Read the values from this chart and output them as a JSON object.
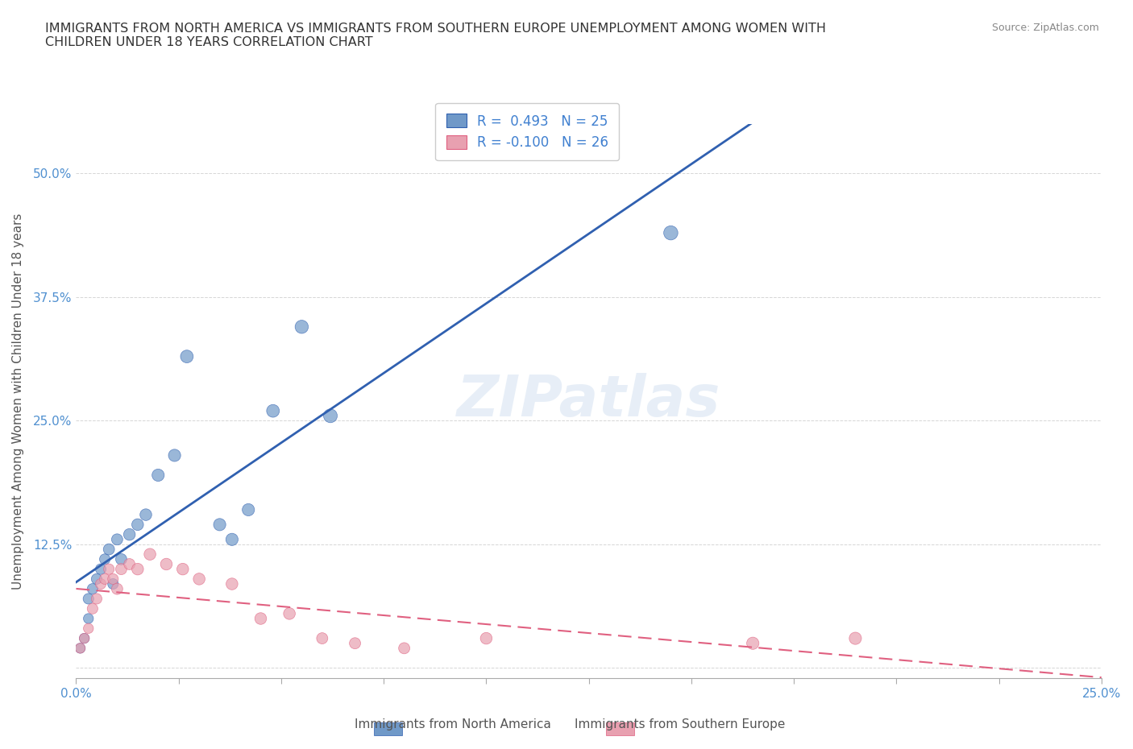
{
  "title": "IMMIGRANTS FROM NORTH AMERICA VS IMMIGRANTS FROM SOUTHERN EUROPE UNEMPLOYMENT AMONG WOMEN WITH\nCHILDREN UNDER 18 YEARS CORRELATION CHART",
  "source": "Source: ZipAtlas.com",
  "xlabel_bottom": "Immigrants from North America",
  "xlabel_bottom2": "Immigrants from Southern Europe",
  "ylabel": "Unemployment Among Women with Children Under 18 years",
  "xlim": [
    0,
    0.25
  ],
  "ylim": [
    -0.01,
    0.55
  ],
  "yticks": [
    0,
    0.125,
    0.25,
    0.375,
    0.5
  ],
  "ytick_labels": [
    "",
    "12.5%",
    "25.0%",
    "37.5%",
    "50.0%"
  ],
  "xticks": [
    0,
    0.025,
    0.05,
    0.075,
    0.1,
    0.125,
    0.15,
    0.175,
    0.2,
    0.225,
    0.25
  ],
  "xtick_labels": [
    "0.0%",
    "",
    "",
    "",
    "",
    "",
    "",
    "",
    "",
    "",
    "25.0%"
  ],
  "blue_R": 0.493,
  "blue_N": 25,
  "pink_R": -0.1,
  "pink_N": 26,
  "blue_color": "#7099c8",
  "pink_color": "#e8a0b0",
  "blue_line_color": "#3060b0",
  "pink_line_color": "#e06080",
  "watermark": "ZIPatlas",
  "blue_points_x": [
    0.001,
    0.002,
    0.003,
    0.003,
    0.004,
    0.005,
    0.006,
    0.007,
    0.008,
    0.009,
    0.01,
    0.011,
    0.013,
    0.015,
    0.017,
    0.02,
    0.024,
    0.027,
    0.035,
    0.038,
    0.042,
    0.048,
    0.055,
    0.062,
    0.145
  ],
  "blue_points_y": [
    0.02,
    0.03,
    0.05,
    0.07,
    0.08,
    0.09,
    0.1,
    0.11,
    0.12,
    0.085,
    0.13,
    0.11,
    0.135,
    0.145,
    0.155,
    0.195,
    0.215,
    0.315,
    0.145,
    0.13,
    0.16,
    0.26,
    0.345,
    0.255,
    0.44
  ],
  "pink_points_x": [
    0.001,
    0.002,
    0.003,
    0.004,
    0.005,
    0.006,
    0.007,
    0.008,
    0.009,
    0.01,
    0.011,
    0.013,
    0.015,
    0.018,
    0.022,
    0.026,
    0.03,
    0.038,
    0.045,
    0.052,
    0.06,
    0.068,
    0.08,
    0.1,
    0.165,
    0.19
  ],
  "pink_points_y": [
    0.02,
    0.03,
    0.04,
    0.06,
    0.07,
    0.085,
    0.09,
    0.1,
    0.09,
    0.08,
    0.1,
    0.105,
    0.1,
    0.115,
    0.105,
    0.1,
    0.09,
    0.085,
    0.05,
    0.055,
    0.03,
    0.025,
    0.02,
    0.03,
    0.025,
    0.03
  ],
  "blue_scatter_sizes": [
    80,
    80,
    80,
    90,
    90,
    90,
    90,
    90,
    100,
    90,
    100,
    100,
    110,
    110,
    110,
    120,
    120,
    130,
    120,
    120,
    120,
    130,
    140,
    150,
    160
  ],
  "pink_scatter_sizes": [
    80,
    80,
    80,
    90,
    90,
    90,
    90,
    90,
    90,
    100,
    100,
    100,
    110,
    110,
    110,
    110,
    110,
    110,
    110,
    110,
    100,
    100,
    100,
    110,
    120,
    120
  ]
}
